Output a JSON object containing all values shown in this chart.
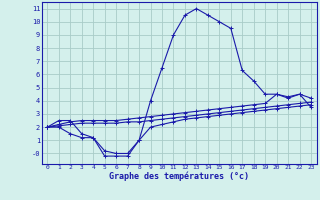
{
  "title": "Graphe des températures (°c)",
  "bg_color": "#d4f0ec",
  "grid_color": "#a8ccc8",
  "line_color": "#1a1aaa",
  "xlim": [
    -0.5,
    23.5
  ],
  "ylim": [
    -0.8,
    11.5
  ],
  "xticks": [
    0,
    1,
    2,
    3,
    4,
    5,
    6,
    7,
    8,
    9,
    10,
    11,
    12,
    13,
    14,
    15,
    16,
    17,
    18,
    19,
    20,
    21,
    22,
    23
  ],
  "ytick_vals": [
    0,
    1,
    2,
    3,
    4,
    5,
    6,
    7,
    8,
    9,
    10,
    11
  ],
  "ytick_labels": [
    "-0",
    "1",
    "2",
    "3",
    "4",
    "5",
    "6",
    "7",
    "8",
    "9",
    "10",
    "11"
  ],
  "series": [
    {
      "x": [
        0,
        1,
        2,
        3,
        4,
        5,
        6,
        7,
        8,
        9,
        10,
        11,
        12,
        13,
        14,
        15,
        16,
        17,
        18,
        19,
        20,
        21,
        22,
        23
      ],
      "y": [
        2.0,
        2.5,
        2.5,
        1.5,
        1.2,
        0.2,
        0.0,
        0.0,
        1.0,
        4.0,
        6.5,
        9.0,
        10.5,
        11.0,
        10.5,
        10.0,
        9.5,
        6.3,
        5.5,
        4.5,
        4.5,
        4.3,
        4.5,
        3.5
      ]
    },
    {
      "x": [
        0,
        1,
        2,
        3,
        4,
        5,
        6,
        7,
        8,
        9,
        10,
        11,
        12,
        13,
        14,
        15,
        16,
        17,
        18,
        19,
        20,
        21,
        22,
        23
      ],
      "y": [
        2.0,
        2.2,
        2.4,
        2.5,
        2.5,
        2.5,
        2.5,
        2.6,
        2.7,
        2.8,
        2.9,
        3.0,
        3.1,
        3.2,
        3.3,
        3.4,
        3.5,
        3.6,
        3.7,
        3.8,
        4.5,
        4.2,
        4.5,
        4.2
      ]
    },
    {
      "x": [
        0,
        1,
        2,
        3,
        4,
        5,
        6,
        7,
        8,
        9,
        10,
        11,
        12,
        13,
        14,
        15,
        16,
        17,
        18,
        19,
        20,
        21,
        22,
        23
      ],
      "y": [
        2.0,
        2.1,
        2.2,
        2.3,
        2.3,
        2.3,
        2.3,
        2.4,
        2.4,
        2.5,
        2.6,
        2.7,
        2.8,
        2.9,
        3.0,
        3.1,
        3.2,
        3.3,
        3.4,
        3.5,
        3.6,
        3.7,
        3.8,
        3.9
      ]
    },
    {
      "x": [
        0,
        1,
        2,
        3,
        4,
        5,
        6,
        7,
        8,
        9,
        10,
        11,
        12,
        13,
        14,
        15,
        16,
        17,
        18,
        19,
        20,
        21,
        22,
        23
      ],
      "y": [
        2.0,
        2.0,
        1.5,
        1.2,
        1.2,
        -0.2,
        -0.2,
        -0.2,
        1.0,
        2.0,
        2.2,
        2.4,
        2.6,
        2.7,
        2.8,
        2.9,
        3.0,
        3.1,
        3.2,
        3.3,
        3.4,
        3.5,
        3.6,
        3.7
      ]
    }
  ]
}
